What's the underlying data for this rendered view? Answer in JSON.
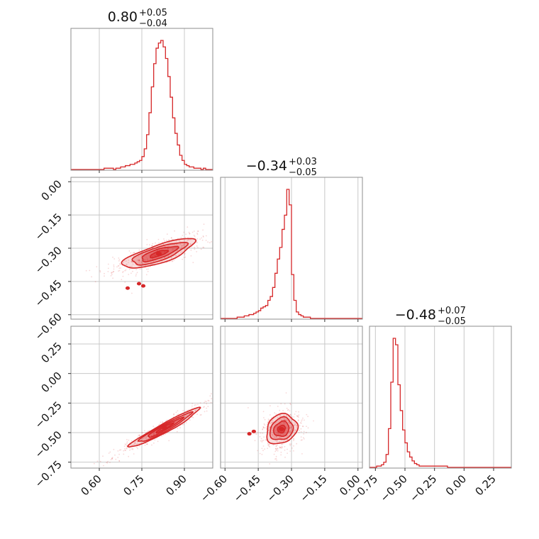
{
  "chart_data": {
    "type": "corner",
    "color": "#d62728",
    "params": [
      {
        "id": "p1",
        "median": 0.8,
        "title_main": "0.80",
        "title_plus": "+0.05",
        "title_minus": "−0.04",
        "range": [
          0.5,
          1.0
        ],
        "ticks": [
          0.6,
          0.75,
          0.9
        ],
        "tick_labels": [
          "0.60",
          "0.75",
          "0.90"
        ],
        "hist_counts": [
          0,
          0,
          0,
          0,
          0,
          0,
          0,
          0,
          0,
          0,
          0,
          0,
          0,
          0,
          1,
          1,
          1,
          1,
          0,
          1,
          1,
          2,
          2,
          3,
          3,
          4,
          4,
          5,
          6,
          7,
          10,
          16,
          27,
          44,
          64,
          82,
          94,
          98,
          100,
          95,
          86,
          72,
          56,
          40,
          28,
          19,
          11,
          7,
          4,
          3,
          2,
          2,
          1,
          1,
          1,
          0,
          1,
          0,
          0,
          0
        ]
      },
      {
        "id": "p2",
        "median": -0.34,
        "title_main": "−0.34",
        "title_plus": "+0.03",
        "title_minus": "−0.05",
        "range": [
          -0.62,
          0.02
        ],
        "ticks": [
          -0.6,
          -0.45,
          -0.3,
          -0.15,
          0.0
        ],
        "tick_labels": [
          "−0.60",
          "−0.45",
          "−0.30",
          "−0.15",
          "0.00"
        ],
        "hist_counts": [
          0,
          0,
          0,
          0,
          0,
          0,
          0,
          1,
          1,
          1,
          2,
          2,
          3,
          3,
          4,
          5,
          6,
          8,
          9,
          10,
          14,
          17,
          24,
          35,
          46,
          55,
          69,
          80,
          100,
          88,
          34,
          14,
          5,
          3,
          2,
          1,
          1,
          1,
          0,
          0,
          0,
          0,
          0,
          0,
          0,
          0,
          0,
          0,
          0,
          0,
          0,
          0,
          0,
          0,
          0,
          0,
          0,
          0,
          0,
          0
        ]
      },
      {
        "id": "p3",
        "median": -0.48,
        "title_main": "−0.48",
        "title_plus": "+0.07",
        "title_minus": "−0.05",
        "range": [
          -0.8,
          0.4
        ],
        "ticks": [
          -0.75,
          -0.5,
          -0.25,
          0.0,
          0.25
        ],
        "tick_labels": [
          "−0.75",
          "−0.50",
          "−0.25",
          "0.00",
          "0.25"
        ],
        "hist_counts": [
          0,
          0,
          0,
          1,
          1,
          2,
          4,
          10,
          30,
          66,
          100,
          95,
          64,
          44,
          29,
          19,
          12,
          8,
          5,
          3,
          2,
          1,
          1,
          1,
          1,
          1,
          1,
          1,
          1,
          1,
          1,
          1,
          1,
          0,
          0,
          0,
          0,
          0,
          0,
          0,
          0,
          0,
          0,
          0,
          0,
          0,
          0,
          0,
          0,
          0,
          0,
          0,
          0,
          0,
          0,
          0,
          0,
          0,
          0,
          0
        ]
      }
    ],
    "pairs": [
      {
        "x": "p1",
        "y": "p2",
        "center": [
          0.81,
          -0.325
        ],
        "cov": [
          [
            0.004,
            0.0016
          ],
          [
            0.0016,
            0.0011
          ]
        ],
        "outlier_blobs": [
          [
            0.7,
            -0.48
          ],
          [
            0.74,
            -0.46
          ],
          [
            0.755,
            -0.47
          ]
        ]
      },
      {
        "x": "p1",
        "y": "p3",
        "center": [
          0.83,
          -0.46
        ],
        "cov": [
          [
            0.0038,
            0.0049
          ],
          [
            0.0049,
            0.0068
          ]
        ],
        "outlier_blobs": []
      },
      {
        "x": "p2",
        "y": "p3",
        "center": [
          -0.345,
          -0.47
        ],
        "cov": [
          [
            0.0012,
            0.0004
          ],
          [
            0.0004,
            0.004
          ]
        ],
        "outlier_blobs": [
          [
            -0.49,
            -0.51
          ],
          [
            -0.47,
            -0.49
          ]
        ]
      }
    ],
    "contour_levels_sigma": [
      0.5,
      1.0,
      1.5,
      2.0
    ],
    "grid": true
  }
}
